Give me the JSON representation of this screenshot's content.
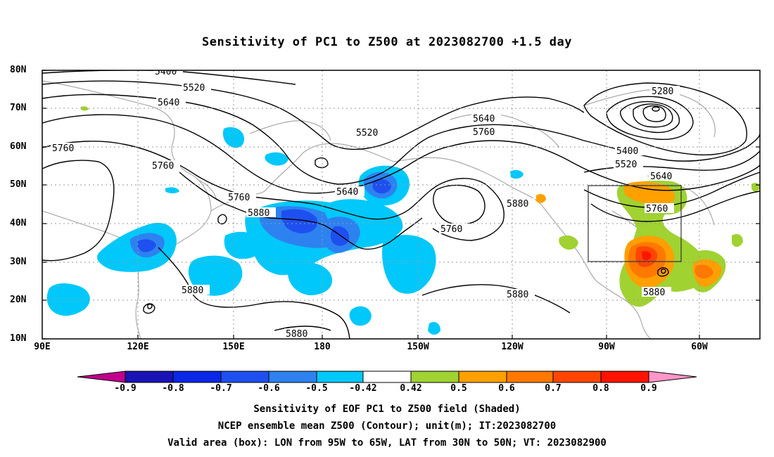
{
  "title": "Sensitivity of PC1 to Z500 at 2023082700 +1.5 day",
  "lat_labels": [
    "80N",
    "70N",
    "60N",
    "50N",
    "40N",
    "30N",
    "20N",
    "10N"
  ],
  "lon_labels": [
    "90E",
    "120E",
    "150E",
    "180",
    "150W",
    "120W",
    "90W",
    "60W"
  ],
  "contour_labels": [
    "5400",
    "5520",
    "5640",
    "5760",
    "5880",
    "5280"
  ],
  "colorbar": {
    "labels": [
      "-0.9",
      "-0.8",
      "-0.7",
      "-0.6",
      "-0.5",
      "-0.42",
      "0.42",
      "0.5",
      "0.6",
      "0.7",
      "0.8",
      "0.9"
    ],
    "colors": [
      "#c0008c",
      "#1a14b4",
      "#0a28e6",
      "#1e50f0",
      "#2d82f0",
      "#1eb4f0",
      "#00c8fa",
      "#ffffff",
      "#a0d232",
      "#ffa000",
      "#ff7800",
      "#ff4600",
      "#ff1400",
      "#ff96c8"
    ]
  },
  "valid_box": {
    "lon_from": "95W",
    "lon_to": "65W",
    "lat_from": "30N",
    "lat_to": "50N"
  },
  "footer": {
    "line1": "Sensitivity of EOF PC1 to Z500 field (Shaded)",
    "line2": "NCEP ensemble mean Z500 (Contour); unit(m); IT:2023082700",
    "line3": "Valid area (box): LON from 95W to 65W, LAT from 30N to 50N; VT: 2023082900"
  }
}
